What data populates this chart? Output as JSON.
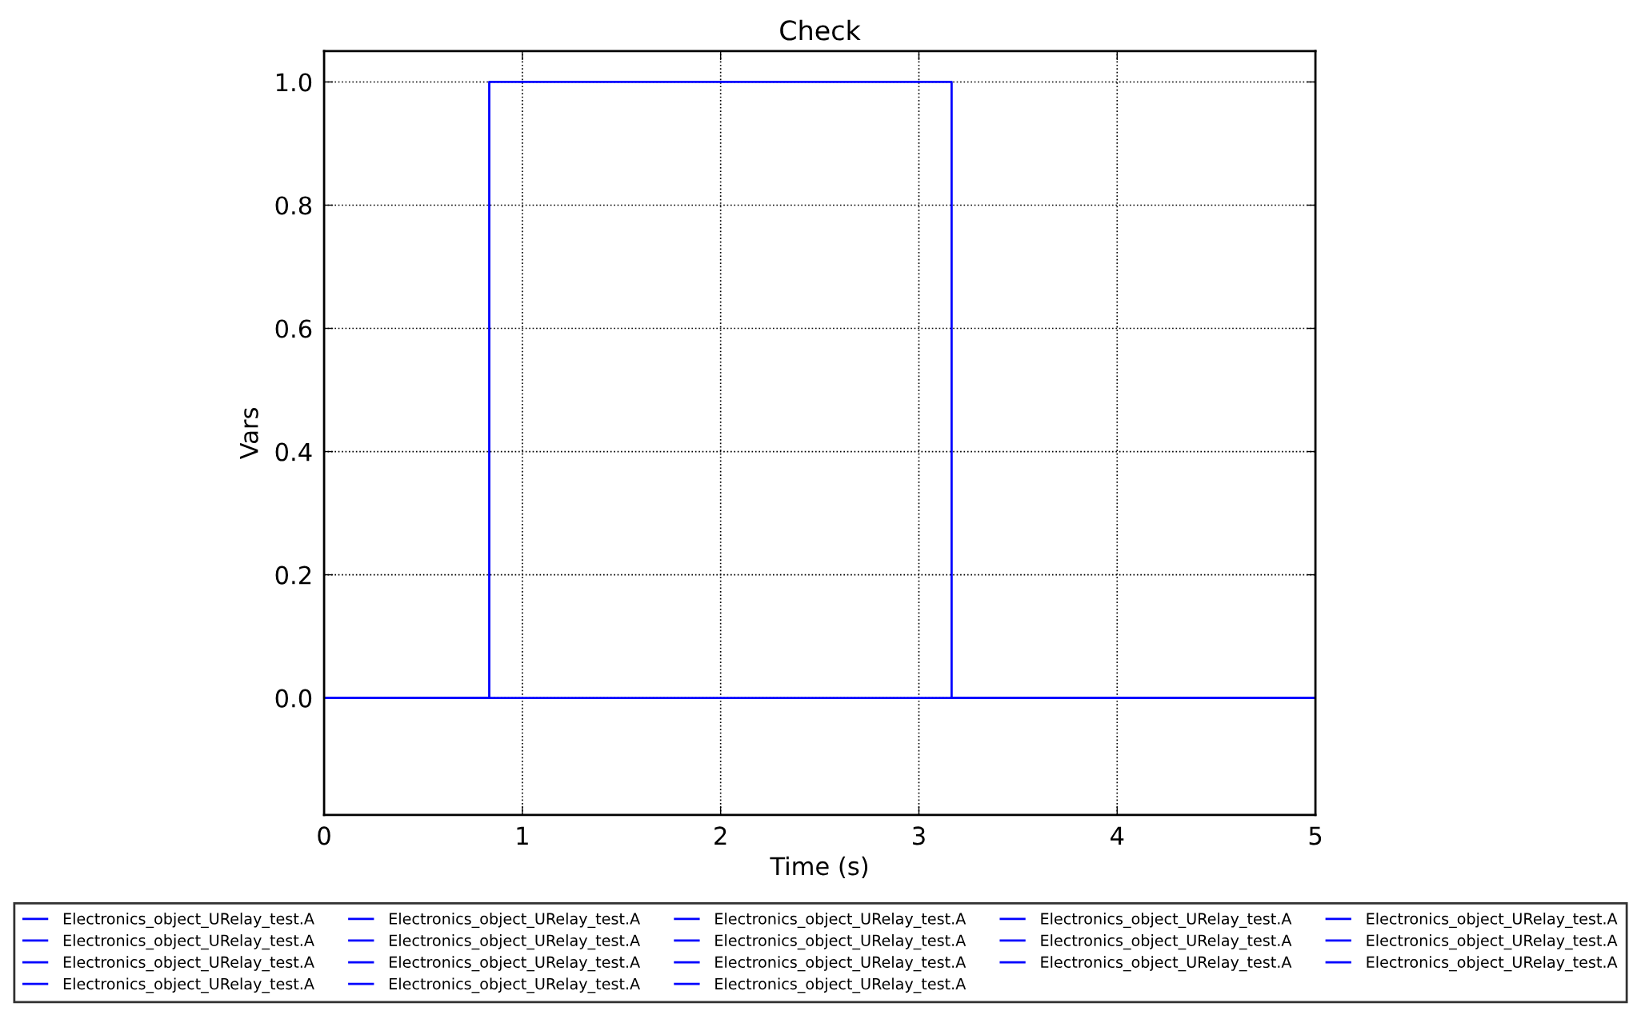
{
  "chart_data": {
    "type": "line",
    "title": "Check",
    "xlabel": "Time (s)",
    "ylabel": "Vars",
    "xlim": [
      0,
      5
    ],
    "xticks": [
      0,
      1,
      2,
      3,
      4,
      5
    ],
    "ylim": [
      -0.19,
      1.05
    ],
    "yticks": [
      {
        "value": 0,
        "label": "0.0"
      },
      0.2,
      0.4,
      0.6,
      0.8,
      {
        "value": 1,
        "label": "1.0"
      }
    ],
    "grid": true,
    "legend": "bottom",
    "marker": "none",
    "line_style": "solid",
    "series": [
      {
        "name": "Electronics_object_URelay_test.A",
        "color": "#0000ff",
        "x": [
          0,
          0.833,
          0.833,
          3.165,
          3.165,
          5
        ],
        "values": [
          0,
          0,
          1,
          1,
          0,
          0
        ]
      },
      {
        "name": "Electronics_object_URelay_test.A",
        "color": "#0000ff",
        "x": [
          0,
          5
        ],
        "values": [
          0,
          0
        ]
      },
      {
        "name": "Electronics_object_URelay_test.A",
        "color": "#0000ff"
      },
      {
        "name": "Electronics_object_URelay_test.A",
        "color": "#0000ff"
      },
      {
        "name": "Electronics_object_URelay_test.A",
        "color": "#0000ff"
      },
      {
        "name": "Electronics_object_URelay_test.A",
        "color": "#0000ff"
      },
      {
        "name": "Electronics_object_URelay_test.A",
        "color": "#0000ff"
      },
      {
        "name": "Electronics_object_URelay_test.A",
        "color": "#0000ff"
      },
      {
        "name": "Electronics_object_URelay_test.A",
        "color": "#0000ff"
      },
      {
        "name": "Electronics_object_URelay_test.A",
        "color": "#0000ff"
      },
      {
        "name": "Electronics_object_URelay_test.A",
        "color": "#0000ff"
      },
      {
        "name": "Electronics_object_URelay_test.A",
        "color": "#0000ff"
      },
      {
        "name": "Electronics_object_URelay_test.A",
        "color": "#0000ff"
      },
      {
        "name": "Electronics_object_URelay_test.A",
        "color": "#0000ff"
      },
      {
        "name": "Electronics_object_URelay_test.A",
        "color": "#0000ff"
      },
      {
        "name": "Electronics_object_URelay_test.A",
        "color": "#0000ff"
      },
      {
        "name": "Electronics_object_URelay_test.A",
        "color": "#0000ff"
      },
      {
        "name": "Electronics_object_URelay_test.A",
        "color": "#0000ff"
      }
    ]
  }
}
